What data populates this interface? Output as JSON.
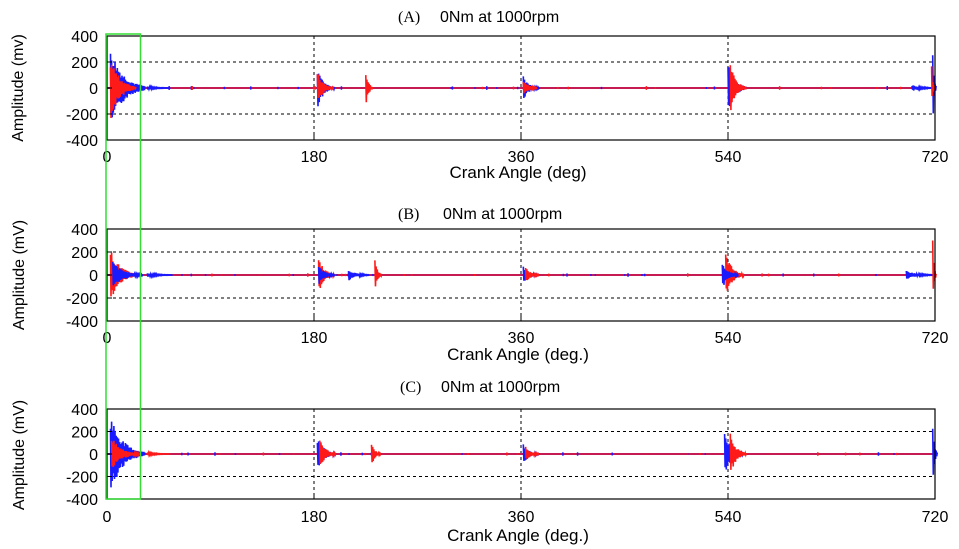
{
  "chart_data": [
    {
      "type": "line",
      "panel_letter": "(A)",
      "title": "0Nm at 1000rpm",
      "xlabel": "Crank Angle (deg)",
      "ylabel": "Amplitude (mv)",
      "xlim": [
        0,
        720
      ],
      "ylim": [
        -400,
        400
      ],
      "xticks": [
        "0",
        "180",
        "360",
        "540",
        "720"
      ],
      "yticks": [
        "400",
        "200",
        "0",
        "-200",
        "-400"
      ],
      "grid": "dashed",
      "bursts": [
        {
          "angle": 3,
          "amplitude": 330,
          "width": 30,
          "color": "blue"
        },
        {
          "angle": 3,
          "amplitude": 250,
          "width": 22,
          "color": "red"
        },
        {
          "angle": 35,
          "amplitude": 15,
          "width": 20,
          "color": "blue"
        },
        {
          "angle": 183,
          "amplitude": 160,
          "width": 15,
          "color": "blue"
        },
        {
          "angle": 183,
          "amplitude": 135,
          "width": 14,
          "color": "red"
        },
        {
          "angle": 225,
          "amplitude": 165,
          "width": 6,
          "color": "red"
        },
        {
          "angle": 362,
          "amplitude": 95,
          "width": 14,
          "color": "blue"
        },
        {
          "angle": 362,
          "amplitude": 70,
          "width": 12,
          "color": "red"
        },
        {
          "angle": 540,
          "amplitude": 210,
          "width": 16,
          "color": "blue"
        },
        {
          "angle": 542,
          "amplitude": 200,
          "width": 14,
          "color": "red"
        },
        {
          "angle": 700,
          "amplitude": 25,
          "width": 20,
          "color": "blue"
        },
        {
          "angle": 718,
          "amplitude": 350,
          "width": 3,
          "color": "blue"
        },
        {
          "angle": 717,
          "amplitude": 170,
          "width": 3,
          "color": "red"
        }
      ],
      "series": [
        {
          "color": "#1a1aff"
        },
        {
          "color": "#ff1a1a"
        }
      ]
    },
    {
      "type": "line",
      "panel_letter": "(B)",
      "title": "0Nm at 1000rpm",
      "xlabel": "Crank Angle (deg.)",
      "ylabel": "Amplitude (mV)",
      "xlim": [
        0,
        720
      ],
      "ylim": [
        -400,
        400
      ],
      "xticks": [
        "0",
        "180",
        "360",
        "540",
        "720"
      ],
      "yticks": [
        "400",
        "200",
        "0",
        "-200",
        "-400"
      ],
      "grid": "dashed",
      "bursts": [
        {
          "angle": 3,
          "amplitude": 230,
          "width": 24,
          "color": "red"
        },
        {
          "angle": 5,
          "amplitude": 120,
          "width": 26,
          "color": "blue"
        },
        {
          "angle": 35,
          "amplitude": 20,
          "width": 22,
          "color": "blue"
        },
        {
          "angle": 184,
          "amplitude": 160,
          "width": 14,
          "color": "red"
        },
        {
          "angle": 184,
          "amplitude": 90,
          "width": 14,
          "color": "blue"
        },
        {
          "angle": 210,
          "amplitude": 50,
          "width": 18,
          "color": "blue"
        },
        {
          "angle": 233,
          "amplitude": 140,
          "width": 6,
          "color": "red"
        },
        {
          "angle": 362,
          "amplitude": 80,
          "width": 14,
          "color": "blue"
        },
        {
          "angle": 364,
          "amplitude": 70,
          "width": 12,
          "color": "red"
        },
        {
          "angle": 538,
          "amplitude": 200,
          "width": 16,
          "color": "red"
        },
        {
          "angle": 535,
          "amplitude": 120,
          "width": 14,
          "color": "blue"
        },
        {
          "angle": 695,
          "amplitude": 40,
          "width": 24,
          "color": "blue"
        },
        {
          "angle": 718,
          "amplitude": 310,
          "width": 3,
          "color": "red"
        }
      ],
      "series": [
        {
          "color": "#1a1aff"
        },
        {
          "color": "#ff1a1a"
        }
      ]
    },
    {
      "type": "line",
      "panel_letter": "(C)",
      "title": "0Nm at 1000rpm",
      "xlabel": "Crank Angle (deg.)",
      "ylabel": "Amplitude (mV)",
      "xlim": [
        0,
        720
      ],
      "ylim": [
        -400,
        400
      ],
      "xticks": [
        "0",
        "180",
        "360",
        "540",
        "720"
      ],
      "yticks": [
        "400",
        "200",
        "0",
        "-200",
        "-400"
      ],
      "grid": "dashed",
      "bursts": [
        {
          "angle": 3,
          "amplitude": 360,
          "width": 30,
          "color": "blue"
        },
        {
          "angle": 4,
          "amplitude": 150,
          "width": 24,
          "color": "red"
        },
        {
          "angle": 35,
          "amplitude": 15,
          "width": 20,
          "color": "red"
        },
        {
          "angle": 183,
          "amplitude": 160,
          "width": 16,
          "color": "blue"
        },
        {
          "angle": 185,
          "amplitude": 150,
          "width": 14,
          "color": "red"
        },
        {
          "angle": 230,
          "amplitude": 110,
          "width": 8,
          "color": "red"
        },
        {
          "angle": 362,
          "amplitude": 90,
          "width": 14,
          "color": "blue"
        },
        {
          "angle": 364,
          "amplitude": 70,
          "width": 12,
          "color": "red"
        },
        {
          "angle": 537,
          "amplitude": 210,
          "width": 16,
          "color": "blue"
        },
        {
          "angle": 542,
          "amplitude": 190,
          "width": 14,
          "color": "red"
        },
        {
          "angle": 718,
          "amplitude": 300,
          "width": 4,
          "color": "blue"
        }
      ],
      "series": [
        {
          "color": "#1a1aff"
        },
        {
          "color": "#ff1a1a"
        }
      ]
    }
  ],
  "highlight": {
    "x_start": 0,
    "x_end": 30,
    "color": "#33dd33"
  }
}
